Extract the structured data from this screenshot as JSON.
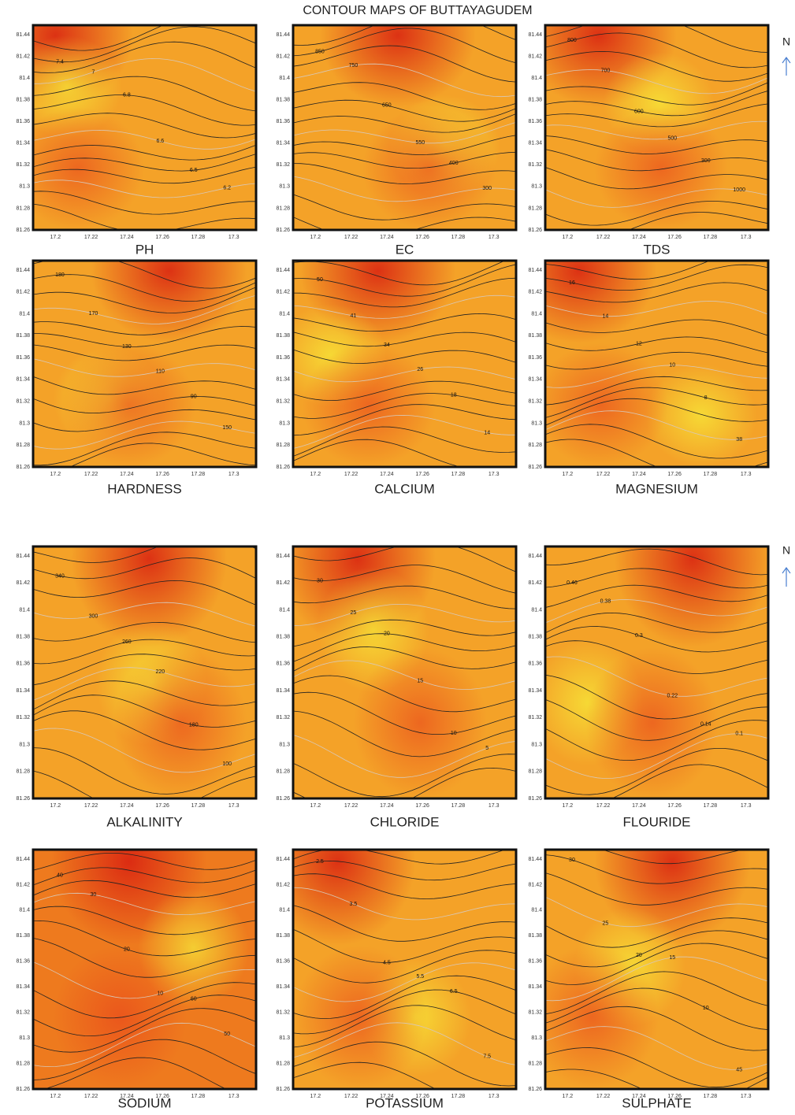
{
  "title": "CONTOUR MAPS OF BUTTAYAGUDEM",
  "north_label": "N",
  "axes": {
    "y_ticks": [
      "81.26",
      "81.28",
      "81.3",
      "81.32",
      "81.34",
      "81.36",
      "81.38",
      "81.4",
      "81.42",
      "81.44"
    ],
    "x_ticks": [
      "17.2",
      "17.22",
      "17.24",
      "17.26",
      "17.28",
      "17.3"
    ]
  },
  "panels": [
    {
      "label": "PH",
      "contour_labels": [
        "7.4",
        "7",
        "6.8",
        "6.6",
        "6.5",
        "6.2"
      ]
    },
    {
      "label": "EC",
      "contour_labels": [
        "850",
        "750",
        "650",
        "550",
        "400",
        "300"
      ]
    },
    {
      "label": "TDS",
      "contour_labels": [
        "800",
        "700",
        "600",
        "500",
        "300",
        "1000"
      ]
    },
    {
      "label": "HARDNESS",
      "contour_labels": [
        "180",
        "170",
        "130",
        "110",
        "90",
        "150"
      ]
    },
    {
      "label": "CALCIUM",
      "contour_labels": [
        "50",
        "41",
        "34",
        "26",
        "18",
        "14"
      ]
    },
    {
      "label": "MAGNESIUM",
      "contour_labels": [
        "16",
        "14",
        "12",
        "10",
        "8",
        "38"
      ]
    },
    {
      "label": "ALKALINITY",
      "contour_labels": [
        "340",
        "300",
        "260",
        "220",
        "180",
        "100"
      ]
    },
    {
      "label": "CHLORIDE",
      "contour_labels": [
        "30",
        "25",
        "20",
        "15",
        "10",
        "5"
      ]
    },
    {
      "label": "FLOURIDE",
      "contour_labels": [
        "0.46",
        "0.38",
        "0.3",
        "0.22",
        "0.14",
        "0.1"
      ]
    },
    {
      "label": "SODIUM",
      "contour_labels": [
        "40",
        "30",
        "20",
        "10",
        "60",
        "50"
      ]
    },
    {
      "label": "POTASSIUM",
      "contour_labels": [
        "2.5",
        "3.5",
        "4.5",
        "5.5",
        "6.5",
        "7.5"
      ]
    },
    {
      "label": "SULPHATE",
      "contour_labels": [
        "30",
        "25",
        "20",
        "15",
        "10",
        "45"
      ]
    }
  ]
}
